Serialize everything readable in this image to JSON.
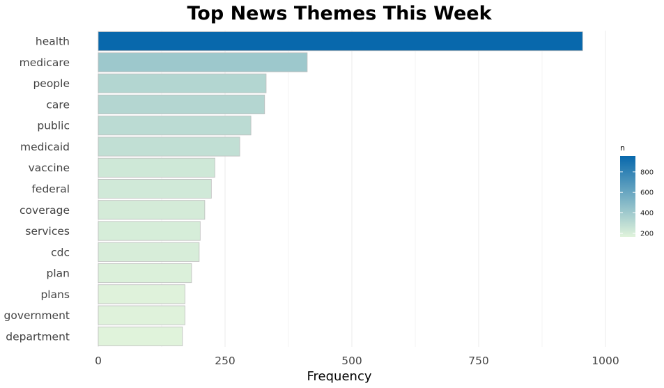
{
  "chart_data": {
    "type": "bar",
    "orientation": "horizontal",
    "title": "Top News Themes This Week",
    "xlabel": "Frequency",
    "ylabel": "",
    "categories": [
      "health",
      "medicare",
      "people",
      "care",
      "public",
      "medicaid",
      "vaccine",
      "federal",
      "coverage",
      "services",
      "cdc",
      "plan",
      "plans",
      "government",
      "department"
    ],
    "values": [
      955,
      412,
      331,
      328,
      301,
      279,
      230,
      223,
      210,
      201,
      199,
      184,
      171,
      171,
      166
    ],
    "xlim": [
      0,
      1000
    ],
    "xticks": [
      0,
      250,
      500,
      750,
      1000
    ],
    "grid": "vertical",
    "legend": {
      "title": "n",
      "placement": "right",
      "min": 166,
      "max": 955,
      "ticks": [
        200,
        400,
        600,
        800
      ],
      "colors": [
        "#e0f3db",
        "#0868ac"
      ]
    }
  }
}
